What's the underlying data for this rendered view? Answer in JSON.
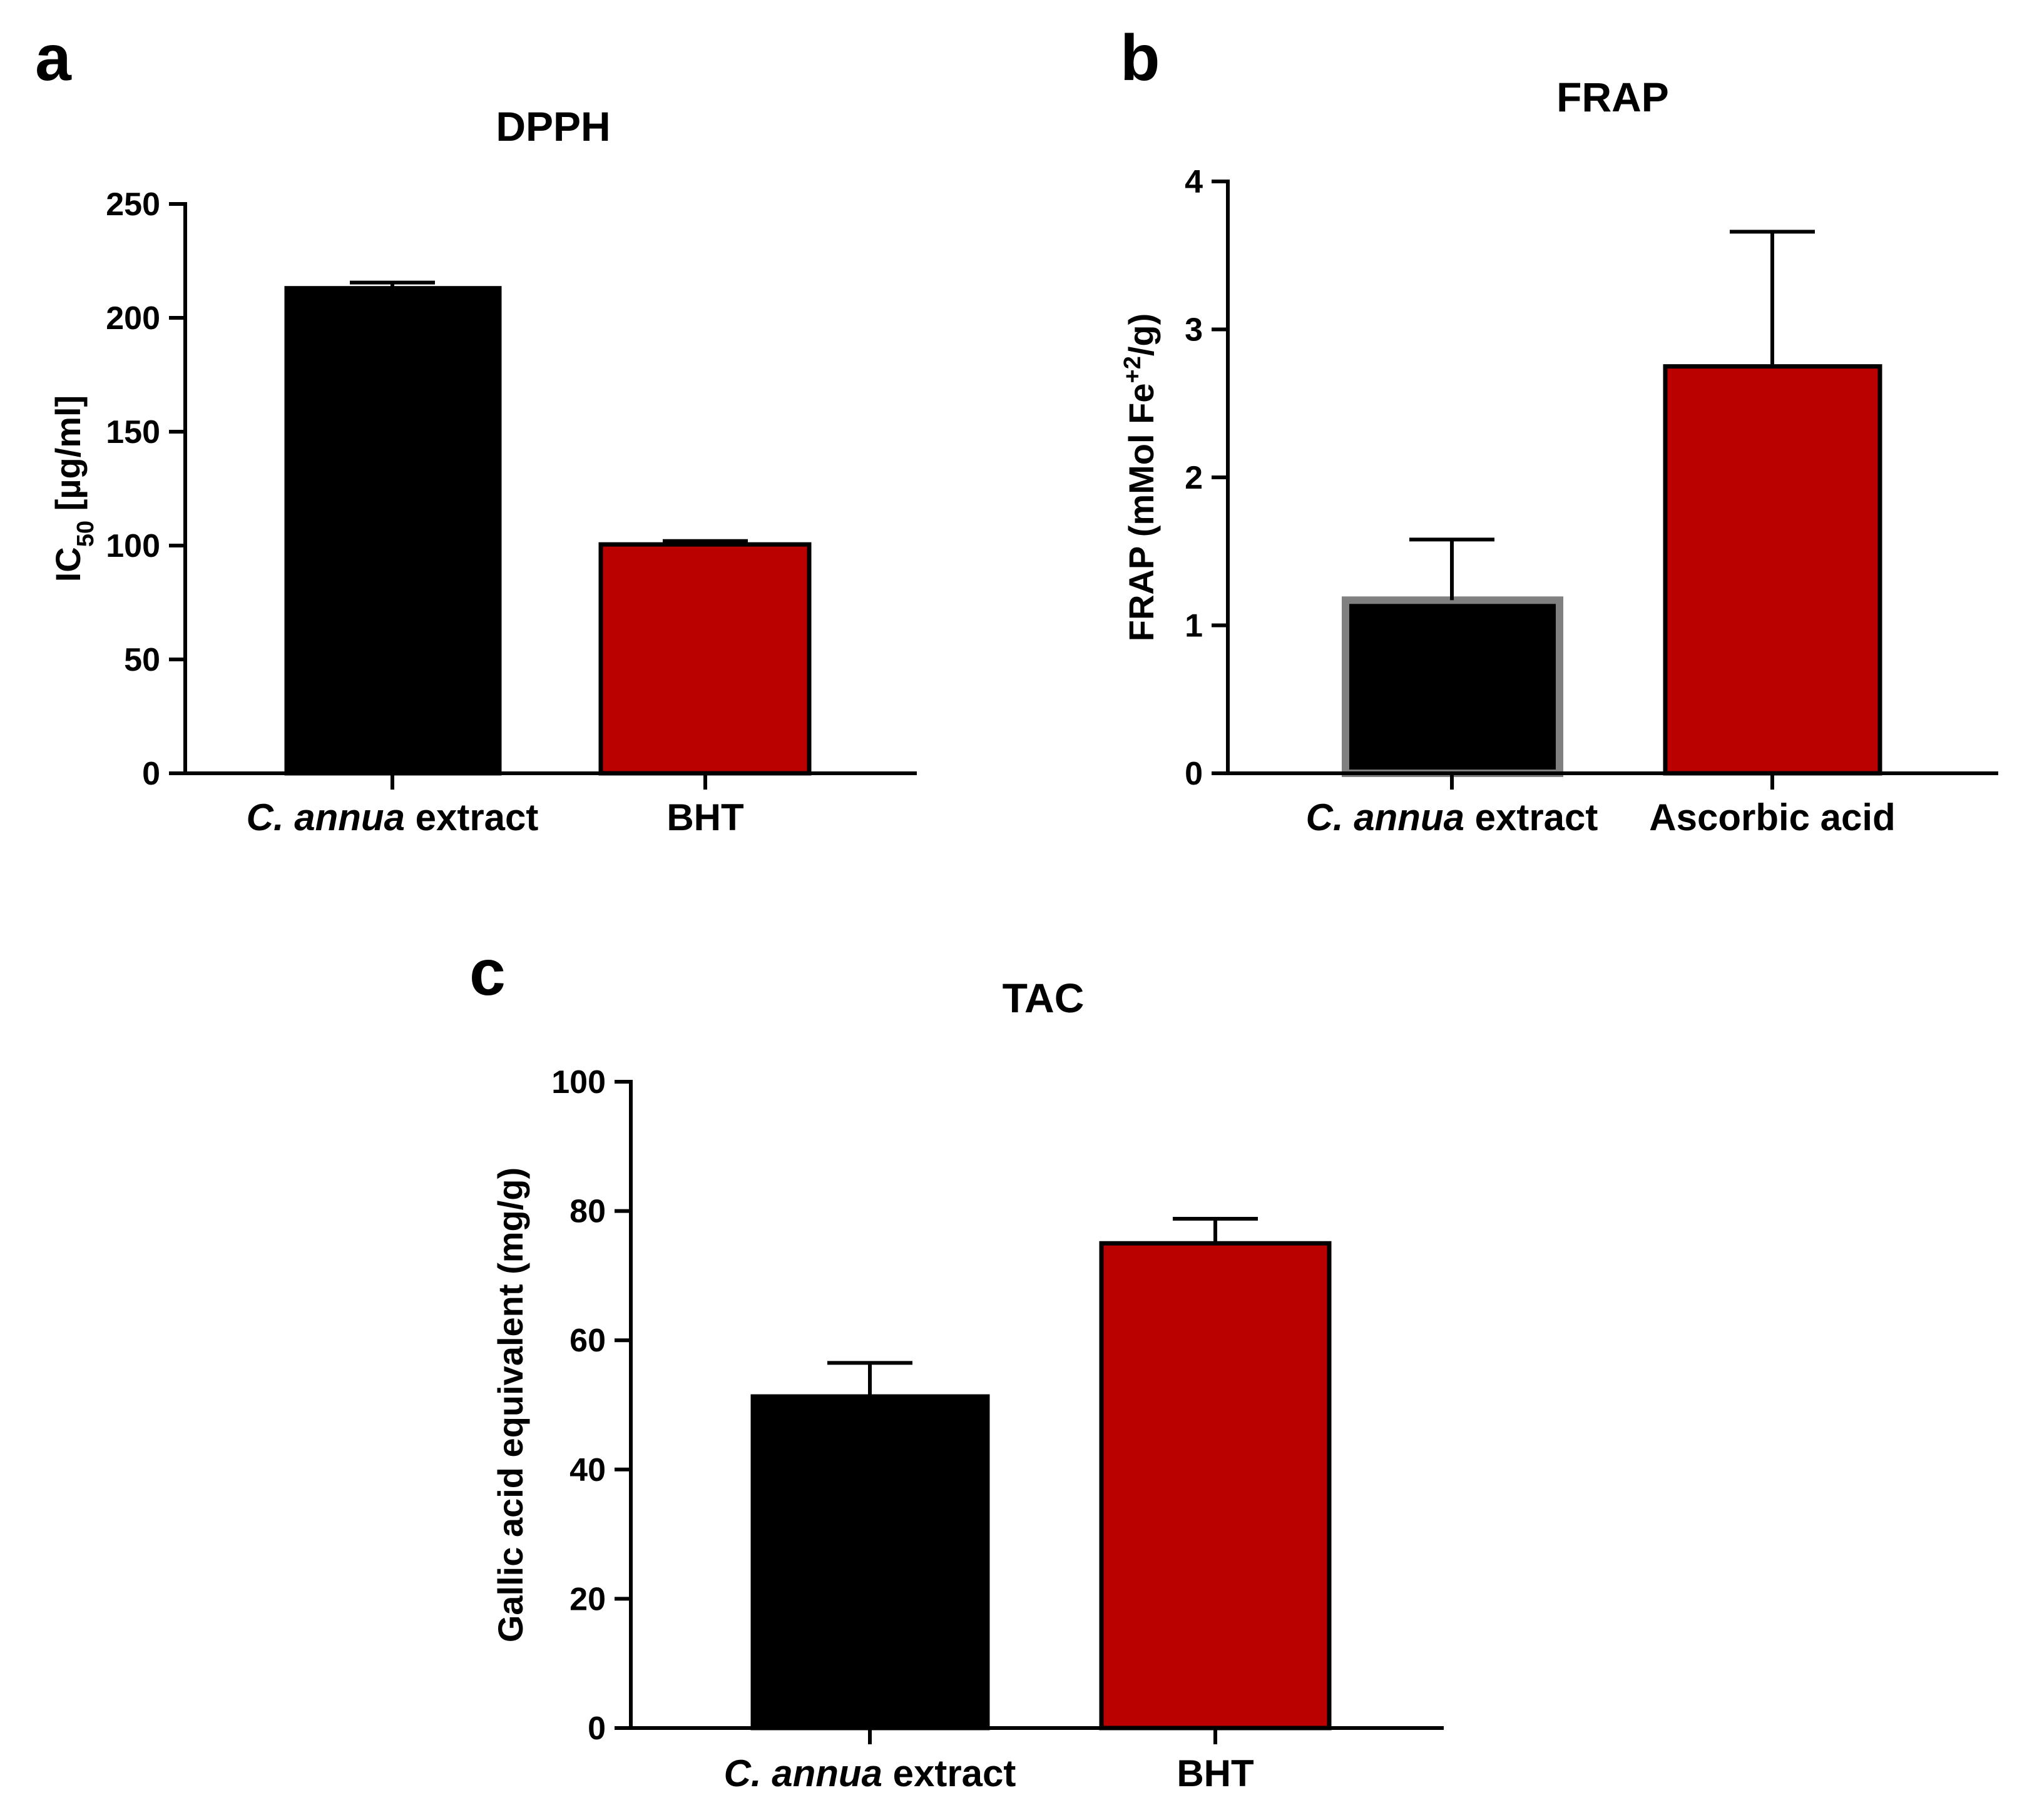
{
  "chart_data": [
    {
      "panel": "a",
      "type": "bar",
      "title": "DPPH",
      "ylabel": {
        "main": "IC",
        "sub": "50",
        "rest": " [µg/ml]"
      },
      "ylim": [
        0,
        250
      ],
      "yticks": [
        0,
        50,
        100,
        150,
        200,
        250
      ],
      "categories": [
        {
          "italic": "C. annua",
          "rest": " extract"
        },
        {
          "italic": "",
          "rest": "BHT"
        }
      ],
      "values": [
        213,
        100.5
      ],
      "errors": [
        2.5,
        1.5
      ],
      "colors": [
        "#000000",
        "#bb0000"
      ],
      "edge_colors": [
        "#000000",
        "#000000"
      ]
    },
    {
      "panel": "b",
      "type": "bar",
      "title": "FRAP",
      "ylabel": {
        "main": "FRAP (mMol Fe",
        "sup": "+2",
        "rest": "/g)"
      },
      "ylim": [
        0,
        4
      ],
      "yticks": [
        0,
        1,
        2,
        3,
        4
      ],
      "categories": [
        {
          "italic": "C. annua",
          "rest": " extract"
        },
        {
          "italic": "",
          "rest": "Ascorbic acid"
        }
      ],
      "values": [
        1.17,
        2.75
      ],
      "errors": [
        0.41,
        0.91
      ],
      "colors": [
        "#000000",
        "#bb0000"
      ],
      "edge_colors": [
        "#808080",
        "#000000"
      ]
    },
    {
      "panel": "c",
      "type": "bar",
      "title": "TAC",
      "ylabel": {
        "main": "Gallic acid equivalent (mg/g)"
      },
      "ylim": [
        0,
        100
      ],
      "yticks": [
        0,
        20,
        40,
        60,
        80,
        100
      ],
      "categories": [
        {
          "italic": "C. annua",
          "rest": " extract"
        },
        {
          "italic": "",
          "rest": "BHT"
        }
      ],
      "values": [
        51.3,
        75
      ],
      "errors": [
        5.2,
        3.8
      ],
      "colors": [
        "#000000",
        "#bb0000"
      ],
      "edge_colors": [
        "#000000",
        "#000000"
      ]
    }
  ]
}
